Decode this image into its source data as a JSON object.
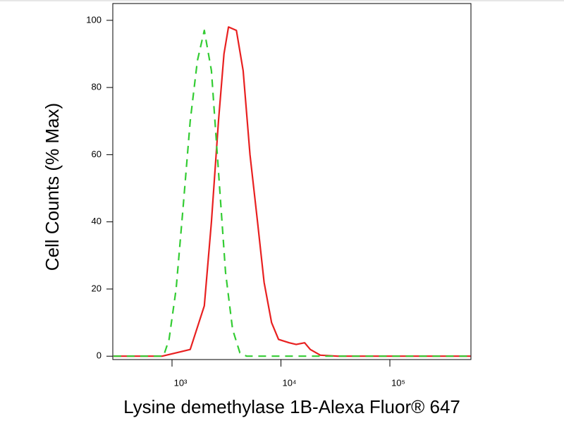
{
  "chart_data": {
    "type": "line",
    "xlabel": "Lysine demethylase 1B-Alexa Fluor® 647",
    "ylabel": "Cell Counts (% Max)",
    "xscale": "log",
    "xlim": [
      286,
      555000
    ],
    "ylim": [
      -1,
      105
    ],
    "xticks": [
      {
        "value": 1000,
        "label": "10³"
      },
      {
        "value": 10000,
        "label": "10⁴"
      },
      {
        "value": 100000,
        "label": "10⁵"
      }
    ],
    "yticks": [
      0,
      20,
      40,
      60,
      80,
      100
    ],
    "series": [
      {
        "color": "#e82020",
        "dashed": false,
        "x": [
          290,
          812,
          1470,
          1980,
          2300,
          2670,
          3000,
          3300,
          3900,
          4500,
          5200,
          6100,
          7000,
          8200,
          9500,
          11900,
          13800,
          16500,
          18600,
          23000,
          33000,
          550000
        ],
        "values": [
          0,
          0,
          2,
          15,
          40,
          70,
          90,
          98,
          97,
          85,
          60,
          40,
          22,
          10,
          5,
          4,
          3.5,
          4,
          2,
          0.3,
          0,
          0
        ]
      },
      {
        "color": "#33cc33",
        "dashed": true,
        "x": [
          290,
          835,
          940,
          1090,
          1270,
          1470,
          1710,
          1980,
          2300,
          2670,
          3100,
          3600,
          4200,
          4850,
          550000
        ],
        "values": [
          0,
          0,
          5,
          20,
          45,
          70,
          88,
          97,
          85,
          55,
          25,
          8,
          1,
          0,
          0
        ]
      }
    ]
  }
}
